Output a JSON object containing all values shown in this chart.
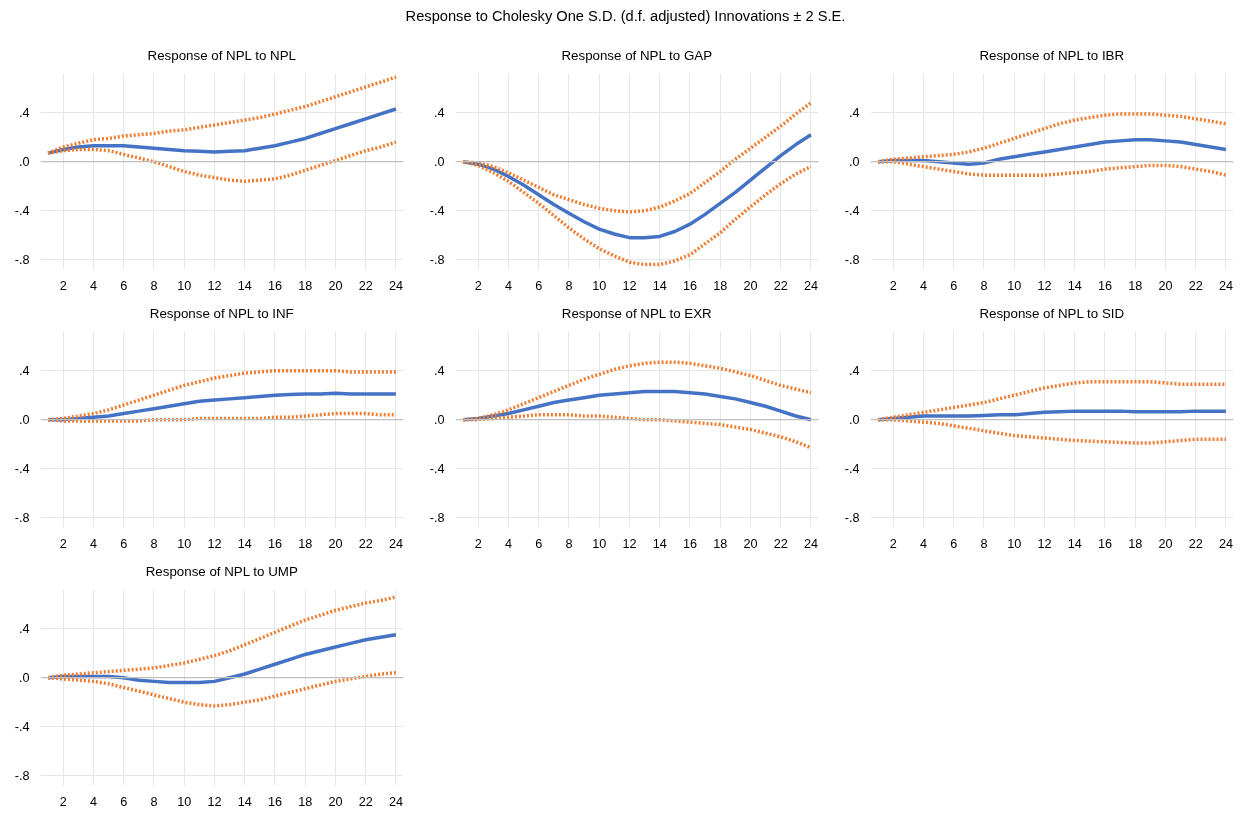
{
  "chart_data": [
    {
      "type": "other",
      "title": "Response to Cholesky One S.D. (d.f. adjusted) Innovations ± 2 S.E."
    },
    {
      "type": "line",
      "title": "Response of NPL to NPL",
      "x": [
        1,
        2,
        3,
        4,
        5,
        6,
        7,
        8,
        9,
        10,
        11,
        12,
        13,
        14,
        15,
        16,
        17,
        18,
        19,
        20,
        21,
        22,
        23,
        24
      ],
      "xlim": [
        0.5,
        24.5
      ],
      "xticks": [
        2,
        4,
        6,
        8,
        10,
        12,
        14,
        16,
        18,
        20,
        22,
        24
      ],
      "ylim": [
        -0.88,
        0.72
      ],
      "yticks": [
        {
          "value": 0.4,
          "label": ".4"
        },
        {
          "value": 0,
          "label": ".0"
        },
        {
          "value": -0.4,
          "label": "-.4"
        },
        {
          "value": -0.8,
          "label": "-.8"
        }
      ],
      "grid": true,
      "ref_lines": [
        {
          "axis": "y",
          "value": 0,
          "color": "#bfbfbf"
        }
      ],
      "series": [
        {
          "color": "#4472c4",
          "line_style": "solid",
          "values": [
            0.07,
            0.1,
            0.12,
            0.13,
            0.13,
            0.13,
            0.12,
            0.11,
            0.1,
            0.09,
            0.085,
            0.08,
            0.085,
            0.09,
            0.11,
            0.13,
            0.16,
            0.19,
            0.23,
            0.27,
            0.31,
            0.35,
            0.39,
            0.43
          ]
        },
        {
          "color": "#ed7d31",
          "line_style": "dotted",
          "values": [
            0.07,
            0.12,
            0.15,
            0.18,
            0.19,
            0.21,
            0.22,
            0.23,
            0.25,
            0.26,
            0.28,
            0.3,
            0.32,
            0.34,
            0.36,
            0.39,
            0.42,
            0.45,
            0.49,
            0.53,
            0.57,
            0.61,
            0.65,
            0.69
          ]
        },
        {
          "color": "#ed7d31",
          "line_style": "dotted",
          "values": [
            0.07,
            0.09,
            0.1,
            0.1,
            0.09,
            0.06,
            0.03,
            0.0,
            -0.04,
            -0.08,
            -0.11,
            -0.13,
            -0.15,
            -0.16,
            -0.15,
            -0.14,
            -0.11,
            -0.07,
            -0.03,
            0.01,
            0.05,
            0.09,
            0.12,
            0.16
          ]
        }
      ]
    },
    {
      "type": "line",
      "title": "Response of NPL to GAP",
      "x": [
        1,
        2,
        3,
        4,
        5,
        6,
        7,
        8,
        9,
        10,
        11,
        12,
        13,
        14,
        15,
        16,
        17,
        18,
        19,
        20,
        21,
        22,
        23,
        24
      ],
      "xlim": [
        0.5,
        24.5
      ],
      "xticks": [
        2,
        4,
        6,
        8,
        10,
        12,
        14,
        16,
        18,
        20,
        22,
        24
      ],
      "ylim": [
        -0.88,
        0.72
      ],
      "yticks": [
        {
          "value": 0.4,
          "label": ".4"
        },
        {
          "value": 0,
          "label": ".0"
        },
        {
          "value": -0.4,
          "label": "-.4"
        },
        {
          "value": -0.8,
          "label": "-.8"
        }
      ],
      "grid": true,
      "ref_lines": [
        {
          "axis": "y",
          "value": 0,
          "color": "#bfbfbf"
        }
      ],
      "series": [
        {
          "color": "#4472c4",
          "line_style": "solid",
          "values": [
            0,
            -0.02,
            -0.06,
            -0.12,
            -0.19,
            -0.27,
            -0.35,
            -0.42,
            -0.49,
            -0.55,
            -0.59,
            -0.62,
            -0.62,
            -0.61,
            -0.57,
            -0.51,
            -0.43,
            -0.34,
            -0.25,
            -0.15,
            -0.05,
            0.05,
            0.14,
            0.22
          ]
        },
        {
          "color": "#ed7d31",
          "line_style": "dotted",
          "values": [
            0,
            -0.01,
            -0.04,
            -0.09,
            -0.15,
            -0.21,
            -0.27,
            -0.31,
            -0.35,
            -0.38,
            -0.4,
            -0.41,
            -0.4,
            -0.37,
            -0.32,
            -0.26,
            -0.17,
            -0.08,
            0.02,
            0.11,
            0.2,
            0.29,
            0.39,
            0.48
          ]
        },
        {
          "color": "#ed7d31",
          "line_style": "dotted",
          "values": [
            0,
            -0.03,
            -0.09,
            -0.16,
            -0.25,
            -0.34,
            -0.44,
            -0.54,
            -0.63,
            -0.71,
            -0.77,
            -0.82,
            -0.84,
            -0.84,
            -0.81,
            -0.76,
            -0.67,
            -0.58,
            -0.47,
            -0.37,
            -0.27,
            -0.18,
            -0.1,
            -0.04
          ]
        }
      ]
    },
    {
      "type": "line",
      "title": "Response of NPL to IBR",
      "x": [
        1,
        2,
        3,
        4,
        5,
        6,
        7,
        8,
        9,
        10,
        11,
        12,
        13,
        14,
        15,
        16,
        17,
        18,
        19,
        20,
        21,
        22,
        23,
        24
      ],
      "xlim": [
        0.5,
        24.5
      ],
      "xticks": [
        2,
        4,
        6,
        8,
        10,
        12,
        14,
        16,
        18,
        20,
        22,
        24
      ],
      "ylim": [
        -0.88,
        0.72
      ],
      "yticks": [
        {
          "value": 0.4,
          "label": ".4"
        },
        {
          "value": 0,
          "label": ".0"
        },
        {
          "value": -0.4,
          "label": "-.4"
        },
        {
          "value": -0.8,
          "label": "-.8"
        }
      ],
      "grid": true,
      "ref_lines": [
        {
          "axis": "y",
          "value": 0,
          "color": "#bfbfbf"
        }
      ],
      "series": [
        {
          "color": "#4472c4",
          "line_style": "solid",
          "values": [
            0,
            0.01,
            0.01,
            0.01,
            0,
            -0.01,
            -0.02,
            -0.01,
            0.02,
            0.04,
            0.06,
            0.08,
            0.1,
            0.12,
            0.14,
            0.16,
            0.17,
            0.18,
            0.18,
            0.17,
            0.16,
            0.14,
            0.12,
            0.1
          ]
        },
        {
          "color": "#ed7d31",
          "line_style": "dotted",
          "values": [
            0,
            0.02,
            0.03,
            0.04,
            0.05,
            0.06,
            0.08,
            0.11,
            0.15,
            0.19,
            0.23,
            0.27,
            0.31,
            0.34,
            0.36,
            0.38,
            0.39,
            0.39,
            0.39,
            0.38,
            0.37,
            0.35,
            0.33,
            0.31
          ]
        },
        {
          "color": "#ed7d31",
          "line_style": "dotted",
          "values": [
            0,
            0,
            -0.02,
            -0.04,
            -0.06,
            -0.08,
            -0.1,
            -0.11,
            -0.11,
            -0.11,
            -0.11,
            -0.11,
            -0.1,
            -0.09,
            -0.08,
            -0.06,
            -0.05,
            -0.04,
            -0.03,
            -0.03,
            -0.04,
            -0.06,
            -0.08,
            -0.11
          ]
        }
      ]
    },
    {
      "type": "line",
      "title": "Response of NPL to INF",
      "x": [
        1,
        2,
        3,
        4,
        5,
        6,
        7,
        8,
        9,
        10,
        11,
        12,
        13,
        14,
        15,
        16,
        17,
        18,
        19,
        20,
        21,
        22,
        23,
        24
      ],
      "xlim": [
        0.5,
        24.5
      ],
      "xticks": [
        2,
        4,
        6,
        8,
        10,
        12,
        14,
        16,
        18,
        20,
        22,
        24
      ],
      "ylim": [
        -0.88,
        0.72
      ],
      "yticks": [
        {
          "value": 0.4,
          "label": ".4"
        },
        {
          "value": 0,
          "label": ".0"
        },
        {
          "value": -0.4,
          "label": "-.4"
        },
        {
          "value": -0.8,
          "label": "-.8"
        }
      ],
      "grid": true,
      "ref_lines": [
        {
          "axis": "y",
          "value": 0,
          "color": "#bfbfbf"
        }
      ],
      "series": [
        {
          "color": "#4472c4",
          "line_style": "solid",
          "values": [
            0,
            0,
            0.01,
            0.02,
            0.03,
            0.05,
            0.07,
            0.09,
            0.11,
            0.13,
            0.15,
            0.16,
            0.17,
            0.18,
            0.19,
            0.2,
            0.205,
            0.21,
            0.21,
            0.215,
            0.21,
            0.21,
            0.21,
            0.21
          ]
        },
        {
          "color": "#ed7d31",
          "line_style": "dotted",
          "values": [
            0,
            0.01,
            0.03,
            0.05,
            0.08,
            0.12,
            0.16,
            0.2,
            0.24,
            0.28,
            0.31,
            0.34,
            0.36,
            0.38,
            0.39,
            0.4,
            0.4,
            0.4,
            0.4,
            0.4,
            0.39,
            0.39,
            0.39,
            0.39
          ]
        },
        {
          "color": "#ed7d31",
          "line_style": "dotted",
          "values": [
            0,
            -0.01,
            -0.01,
            -0.01,
            -0.01,
            -0.01,
            -0.01,
            0,
            0,
            0,
            0.01,
            0.01,
            0.01,
            0.01,
            0.01,
            0.02,
            0.02,
            0.03,
            0.04,
            0.05,
            0.05,
            0.05,
            0.04,
            0.04
          ]
        }
      ]
    },
    {
      "type": "line",
      "title": "Response of NPL to EXR",
      "x": [
        1,
        2,
        3,
        4,
        5,
        6,
        7,
        8,
        9,
        10,
        11,
        12,
        13,
        14,
        15,
        16,
        17,
        18,
        19,
        20,
        21,
        22,
        23,
        24
      ],
      "xlim": [
        0.5,
        24.5
      ],
      "xticks": [
        2,
        4,
        6,
        8,
        10,
        12,
        14,
        16,
        18,
        20,
        22,
        24
      ],
      "ylim": [
        -0.88,
        0.72
      ],
      "yticks": [
        {
          "value": 0.4,
          "label": ".4"
        },
        {
          "value": 0,
          "label": ".0"
        },
        {
          "value": -0.4,
          "label": "-.4"
        },
        {
          "value": -0.8,
          "label": "-.8"
        }
      ],
      "grid": true,
      "ref_lines": [
        {
          "axis": "y",
          "value": 0,
          "color": "#bfbfbf"
        }
      ],
      "series": [
        {
          "color": "#4472c4",
          "line_style": "solid",
          "values": [
            0,
            0.01,
            0.03,
            0.05,
            0.08,
            0.11,
            0.14,
            0.16,
            0.18,
            0.2,
            0.21,
            0.22,
            0.23,
            0.23,
            0.23,
            0.22,
            0.21,
            0.19,
            0.17,
            0.14,
            0.11,
            0.07,
            0.03,
            0
          ]
        },
        {
          "color": "#ed7d31",
          "line_style": "dotted",
          "values": [
            0,
            0.01,
            0.04,
            0.08,
            0.13,
            0.18,
            0.23,
            0.28,
            0.33,
            0.37,
            0.41,
            0.44,
            0.46,
            0.47,
            0.47,
            0.46,
            0.44,
            0.42,
            0.39,
            0.36,
            0.32,
            0.28,
            0.25,
            0.22
          ]
        },
        {
          "color": "#ed7d31",
          "line_style": "dotted",
          "values": [
            0,
            0,
            0.01,
            0.02,
            0.03,
            0.04,
            0.04,
            0.04,
            0.03,
            0.03,
            0.02,
            0.01,
            0,
            0,
            -0.01,
            -0.02,
            -0.03,
            -0.04,
            -0.06,
            -0.08,
            -0.11,
            -0.14,
            -0.18,
            -0.23
          ]
        }
      ]
    },
    {
      "type": "line",
      "title": "Response of NPL to SID",
      "x": [
        1,
        2,
        3,
        4,
        5,
        6,
        7,
        8,
        9,
        10,
        11,
        12,
        13,
        14,
        15,
        16,
        17,
        18,
        19,
        20,
        21,
        22,
        23,
        24
      ],
      "xlim": [
        0.5,
        24.5
      ],
      "xticks": [
        2,
        4,
        6,
        8,
        10,
        12,
        14,
        16,
        18,
        20,
        22,
        24
      ],
      "ylim": [
        -0.88,
        0.72
      ],
      "yticks": [
        {
          "value": 0.4,
          "label": ".4"
        },
        {
          "value": 0,
          "label": ".0"
        },
        {
          "value": -0.4,
          "label": "-.4"
        },
        {
          "value": -0.8,
          "label": "-.8"
        }
      ],
      "grid": true,
      "ref_lines": [
        {
          "axis": "y",
          "value": 0,
          "color": "#bfbfbf"
        }
      ],
      "series": [
        {
          "color": "#4472c4",
          "line_style": "solid",
          "values": [
            0,
            0.01,
            0.02,
            0.03,
            0.03,
            0.03,
            0.03,
            0.035,
            0.04,
            0.04,
            0.05,
            0.06,
            0.065,
            0.07,
            0.07,
            0.07,
            0.07,
            0.065,
            0.065,
            0.065,
            0.065,
            0.07,
            0.07,
            0.07
          ]
        },
        {
          "color": "#ed7d31",
          "line_style": "dotted",
          "values": [
            0,
            0.02,
            0.04,
            0.06,
            0.08,
            0.1,
            0.12,
            0.14,
            0.17,
            0.2,
            0.23,
            0.26,
            0.28,
            0.3,
            0.31,
            0.31,
            0.31,
            0.31,
            0.31,
            0.3,
            0.29,
            0.29,
            0.29,
            0.29
          ]
        },
        {
          "color": "#ed7d31",
          "line_style": "dotted",
          "values": [
            0,
            0,
            -0.01,
            -0.02,
            -0.03,
            -0.05,
            -0.07,
            -0.09,
            -0.11,
            -0.13,
            -0.14,
            -0.15,
            -0.16,
            -0.17,
            -0.175,
            -0.18,
            -0.185,
            -0.19,
            -0.19,
            -0.18,
            -0.17,
            -0.16,
            -0.16,
            -0.16
          ]
        }
      ]
    },
    {
      "type": "line",
      "title": "Response of NPL to UMP",
      "x": [
        1,
        2,
        3,
        4,
        5,
        6,
        7,
        8,
        9,
        10,
        11,
        12,
        13,
        14,
        15,
        16,
        17,
        18,
        19,
        20,
        21,
        22,
        23,
        24
      ],
      "xlim": [
        0.5,
        24.5
      ],
      "xticks": [
        2,
        4,
        6,
        8,
        10,
        12,
        14,
        16,
        18,
        20,
        22,
        24
      ],
      "ylim": [
        -0.88,
        0.72
      ],
      "yticks": [
        {
          "value": 0.4,
          "label": ".4"
        },
        {
          "value": 0,
          "label": ".0"
        },
        {
          "value": -0.4,
          "label": "-.4"
        },
        {
          "value": -0.8,
          "label": "-.8"
        }
      ],
      "grid": true,
      "ref_lines": [
        {
          "axis": "y",
          "value": 0,
          "color": "#bfbfbf"
        }
      ],
      "series": [
        {
          "color": "#4472c4",
          "line_style": "solid",
          "values": [
            0,
            0.01,
            0.01,
            0.01,
            0.01,
            0,
            -0.02,
            -0.03,
            -0.04,
            -0.04,
            -0.04,
            -0.03,
            0,
            0.03,
            0.07,
            0.11,
            0.15,
            0.19,
            0.22,
            0.25,
            0.28,
            0.31,
            0.33,
            0.35
          ]
        },
        {
          "color": "#ed7d31",
          "line_style": "dotted",
          "values": [
            0,
            0.02,
            0.03,
            0.04,
            0.05,
            0.06,
            0.07,
            0.08,
            0.1,
            0.12,
            0.15,
            0.18,
            0.22,
            0.27,
            0.32,
            0.37,
            0.42,
            0.47,
            0.51,
            0.55,
            0.58,
            0.61,
            0.63,
            0.66
          ]
        },
        {
          "color": "#ed7d31",
          "line_style": "dotted",
          "values": [
            0,
            -0.01,
            -0.02,
            -0.03,
            -0.05,
            -0.08,
            -0.11,
            -0.14,
            -0.17,
            -0.2,
            -0.22,
            -0.23,
            -0.22,
            -0.2,
            -0.18,
            -0.15,
            -0.12,
            -0.09,
            -0.06,
            -0.03,
            -0.01,
            0.01,
            0.03,
            0.04
          ]
        }
      ]
    }
  ]
}
